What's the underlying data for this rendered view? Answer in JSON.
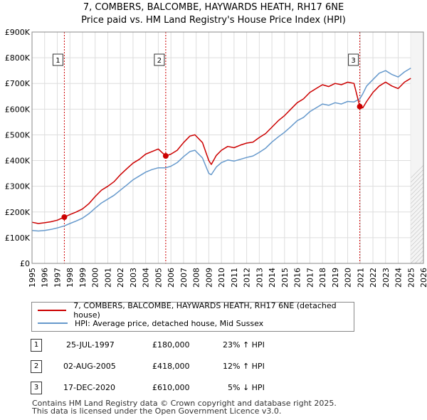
{
  "title_line1": "7, COMBERS, BALCOMBE, HAYWARDS HEATH, RH17 6NE",
  "title_line2": "Price paid vs. HM Land Registry's House Price Index (HPI)",
  "colors": {
    "price": "#cc0000",
    "hpi": "#6699cc",
    "grid": "#dddddd",
    "future_hatch": "#bbbbbb",
    "band": "#dce6f5"
  },
  "legend": {
    "price_label": "7, COMBERS, BALCOMBE, HAYWARDS HEATH, RH17 6NE (detached house)",
    "hpi_label": "HPI: Average price, detached house, Mid Sussex"
  },
  "sales": [
    {
      "num": "1",
      "date": "25-JUL-1997",
      "price": "£180,000",
      "hpi": "23% ↑ HPI"
    },
    {
      "num": "2",
      "date": "02-AUG-2005",
      "price": "£418,000",
      "hpi": "12% ↑ HPI"
    },
    {
      "num": "3",
      "date": "17-DEC-2020",
      "price": "£610,000",
      "hpi": "5% ↓ HPI"
    }
  ],
  "footer_line1": "Contains HM Land Registry data © Crown copyright and database right 2025.",
  "footer_line2": "This data is licensed under the Open Government Licence v3.0.",
  "chart_data": {
    "type": "line",
    "title": "7, COMBERS, BALCOMBE, HAYWARDS HEATH, RH17 6NE — Price paid vs. HM Land Registry's House Price Index (HPI)",
    "xlabel": "",
    "ylabel": "",
    "xlim": [
      1995,
      2026
    ],
    "ylim": [
      0,
      900000
    ],
    "y_ticks": [
      0,
      100000,
      200000,
      300000,
      400000,
      500000,
      600000,
      700000,
      800000,
      900000
    ],
    "y_tick_labels": [
      "£0",
      "£100K",
      "£200K",
      "£300K",
      "£400K",
      "£500K",
      "£600K",
      "£700K",
      "£800K",
      "£900K"
    ],
    "x_ticks": [
      1995,
      1996,
      1997,
      1998,
      1999,
      2000,
      2001,
      2002,
      2003,
      2004,
      2005,
      2006,
      2007,
      2008,
      2009,
      2010,
      2011,
      2012,
      2013,
      2014,
      2015,
      2016,
      2017,
      2018,
      2019,
      2020,
      2021,
      2022,
      2023,
      2024,
      2025,
      2026
    ],
    "forecast_from": 2025.0,
    "series": [
      {
        "name": "7, COMBERS, BALCOMBE, HAYWARDS HEATH, RH17 6NE (detached house)",
        "x": [
          1995.0,
          1995.5,
          1996.0,
          1996.5,
          1997.0,
          1997.56,
          1998.0,
          1998.5,
          1999.0,
          1999.5,
          2000.0,
          2000.5,
          2001.0,
          2001.5,
          2002.0,
          2002.5,
          2003.0,
          2003.5,
          2004.0,
          2004.5,
          2005.0,
          2005.59,
          2006.0,
          2006.5,
          2007.0,
          2007.5,
          2007.9,
          2008.5,
          2009.0,
          2009.2,
          2009.6,
          2010.0,
          2010.5,
          2011.0,
          2011.5,
          2012.0,
          2012.5,
          2013.0,
          2013.5,
          2014.0,
          2014.5,
          2015.0,
          2015.5,
          2016.0,
          2016.5,
          2017.0,
          2017.5,
          2018.0,
          2018.5,
          2019.0,
          2019.5,
          2020.0,
          2020.5,
          2020.96,
          2021.2,
          2021.5,
          2022.0,
          2022.5,
          2023.0,
          2023.5,
          2024.0,
          2024.5,
          2025.0
        ],
        "values": [
          160000,
          155000,
          158000,
          162000,
          168000,
          180000,
          190000,
          200000,
          212000,
          232000,
          260000,
          285000,
          300000,
          318000,
          345000,
          368000,
          390000,
          405000,
          425000,
          435000,
          445000,
          418000,
          425000,
          440000,
          470000,
          495000,
          500000,
          470000,
          400000,
          385000,
          420000,
          440000,
          455000,
          450000,
          460000,
          468000,
          472000,
          490000,
          505000,
          530000,
          555000,
          575000,
          600000,
          625000,
          640000,
          665000,
          680000,
          695000,
          688000,
          700000,
          695000,
          705000,
          700000,
          610000,
          605000,
          630000,
          665000,
          690000,
          705000,
          690000,
          680000,
          705000,
          720000
        ]
      },
      {
        "name": "HPI: Average price, detached house, Mid Sussex",
        "x": [
          1995.0,
          1995.5,
          1996.0,
          1996.5,
          1997.0,
          1997.56,
          1998.0,
          1998.5,
          1999.0,
          1999.5,
          2000.0,
          2000.5,
          2001.0,
          2001.5,
          2002.0,
          2002.5,
          2003.0,
          2003.5,
          2004.0,
          2004.5,
          2005.0,
          2005.59,
          2006.0,
          2006.5,
          2007.0,
          2007.5,
          2007.9,
          2008.5,
          2009.0,
          2009.2,
          2009.6,
          2010.0,
          2010.5,
          2011.0,
          2011.5,
          2012.0,
          2012.5,
          2013.0,
          2013.5,
          2014.0,
          2014.5,
          2015.0,
          2015.5,
          2016.0,
          2016.5,
          2017.0,
          2017.5,
          2018.0,
          2018.5,
          2019.0,
          2019.5,
          2020.0,
          2020.5,
          2020.96,
          2021.2,
          2021.5,
          2022.0,
          2022.5,
          2023.0,
          2023.5,
          2024.0,
          2024.5,
          2025.0
        ],
        "values": [
          128000,
          126000,
          128000,
          132000,
          138000,
          146000,
          155000,
          165000,
          176000,
          193000,
          215000,
          235000,
          250000,
          265000,
          285000,
          305000,
          325000,
          340000,
          355000,
          365000,
          372000,
          372000,
          378000,
          392000,
          415000,
          435000,
          440000,
          410000,
          350000,
          345000,
          375000,
          392000,
          402000,
          398000,
          405000,
          412000,
          418000,
          432000,
          448000,
          472000,
          492000,
          510000,
          532000,
          555000,
          568000,
          590000,
          605000,
          620000,
          615000,
          625000,
          620000,
          630000,
          628000,
          640000,
          660000,
          690000,
          715000,
          740000,
          750000,
          735000,
          725000,
          745000,
          760000
        ]
      }
    ],
    "sale_markers": [
      {
        "label": "1",
        "x": 1997.56,
        "value": 180000
      },
      {
        "label": "2",
        "x": 2005.59,
        "value": 418000
      },
      {
        "label": "3",
        "x": 2020.96,
        "value": 610000
      }
    ]
  }
}
